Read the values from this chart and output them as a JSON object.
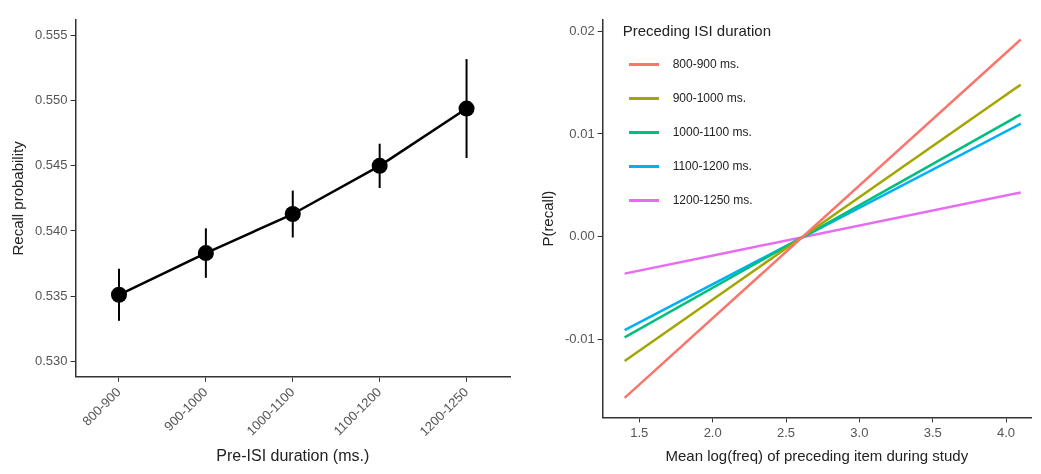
{
  "chart_data": [
    {
      "type": "line",
      "xlabel": "Pre-ISI duration (ms.)",
      "ylabel": "Recall probability",
      "categories": [
        "800-900",
        "900-1000",
        "1000-1100",
        "1100-1200",
        "1200-1250"
      ],
      "values": [
        0.5351,
        0.5383,
        0.5413,
        0.545,
        0.5494
      ],
      "errors": [
        0.002,
        0.0019,
        0.0018,
        0.0017,
        [
          0.5456,
          0.5532
        ]
      ],
      "color": "#000000",
      "marker": "circle",
      "line_style": "solid",
      "grid": false,
      "legend": false,
      "ylim": [
        0.5288,
        0.5562
      ],
      "yticks": [
        {
          "value": 0.53,
          "label": "0.530"
        },
        {
          "value": 0.535,
          "label": "0.535"
        },
        {
          "value": 0.54,
          "label": "0.540"
        },
        {
          "value": 0.545,
          "label": "0.545"
        },
        {
          "value": 0.55,
          "label": "0.550"
        },
        {
          "value": 0.555,
          "label": "0.555"
        }
      ]
    },
    {
      "type": "line",
      "xlabel": "Mean log(freq) of preceding item during study",
      "ylabel": "P(recall)",
      "legend_title": "Preceding ISI duration",
      "legend": "top left",
      "grid": false,
      "marker": "none",
      "line_style": "solid",
      "x": [
        1.4,
        4.1
      ],
      "series": [
        {
          "name": "800-900 ms.",
          "color": "#f8766d",
          "values": [
            -0.0157,
            0.0192
          ]
        },
        {
          "name": "900-1000 ms.",
          "color": "#a3a500",
          "values": [
            -0.0121,
            0.0148
          ]
        },
        {
          "name": "1000-1100 ms.",
          "color": "#00bf7d",
          "values": [
            -0.0098,
            0.0119
          ]
        },
        {
          "name": "1100-1200 ms.",
          "color": "#00b0f6",
          "values": [
            -0.0091,
            0.011
          ]
        },
        {
          "name": "1200-1250 ms.",
          "color": "#e76bf3",
          "values": [
            -0.0036,
            0.0043
          ]
        }
      ],
      "xlim": [
        1.25,
        4.17
      ],
      "xticks": [
        {
          "value": 1.5,
          "label": "1.5"
        },
        {
          "value": 2,
          "label": "2.0"
        },
        {
          "value": 2.5,
          "label": "2.5"
        },
        {
          "value": 3,
          "label": "3.0"
        },
        {
          "value": 3.5,
          "label": "3.5"
        },
        {
          "value": 4,
          "label": "4.0"
        }
      ],
      "ylim": [
        -0.0176,
        0.0211
      ],
      "yticks": [
        {
          "value": -0.01,
          "label": "-0.01"
        },
        {
          "value": 0,
          "label": "0.00"
        },
        {
          "value": 0.01,
          "label": "0.01"
        },
        {
          "value": 0.02,
          "label": "0.02"
        }
      ]
    }
  ]
}
